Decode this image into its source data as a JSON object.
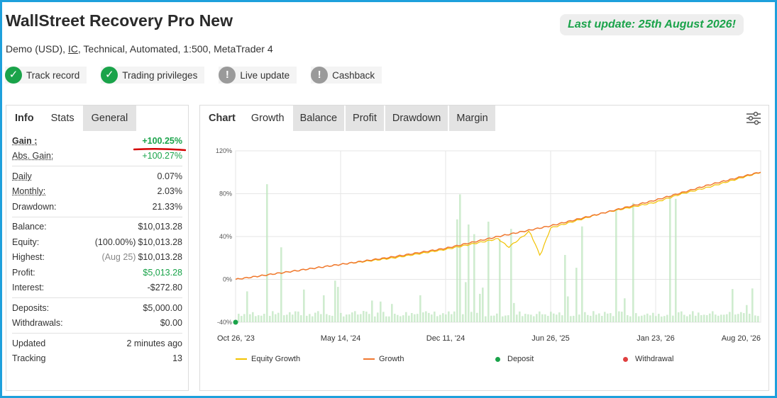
{
  "header": {
    "title": "WallStreet Recovery Pro New",
    "subtitle_pre": "Demo (USD), ",
    "subtitle_broker": "IC",
    "subtitle_post": ", Technical, Automated, 1:500, MetaTrader 4",
    "last_update": "Last update: 25th August 2026!"
  },
  "badges": [
    {
      "label": "Track record",
      "icon": "check-icon",
      "status_color": "#1aa34a"
    },
    {
      "label": "Trading privileges",
      "icon": "check-icon",
      "status_color": "#1aa34a"
    },
    {
      "label": "Live update",
      "icon": "exclamation-icon",
      "status_color": "#9a9a9a"
    },
    {
      "label": "Cashback",
      "icon": "exclamation-icon",
      "status_color": "#9a9a9a"
    }
  ],
  "left_tabs": [
    "Info",
    "Stats",
    "General"
  ],
  "stats": {
    "gain": {
      "label": "Gain :",
      "value": "+100.25%"
    },
    "abs_gain": {
      "label": "Abs. Gain:",
      "value": "+100.27%"
    },
    "daily": {
      "label": "Daily",
      "value": "0.07%"
    },
    "monthly": {
      "label": "Monthly:",
      "value": "2.03%"
    },
    "drawdown": {
      "label": "Drawdown:",
      "value": "21.33%"
    },
    "balance": {
      "label": "Balance:",
      "value": "$10,013.28"
    },
    "equity": {
      "label": "Equity:",
      "prefix": "(100.00%)",
      "value": "$10,013.28"
    },
    "highest": {
      "label": "Highest:",
      "prefix": "(Aug 25)",
      "value": "$10,013.28"
    },
    "profit": {
      "label": "Profit:",
      "value": "$5,013.28"
    },
    "interest": {
      "label": "Interest:",
      "value": "-$272.80"
    },
    "deposits": {
      "label": "Deposits:",
      "value": "$5,000.00"
    },
    "withdrawals": {
      "label": "Withdrawals:",
      "value": "$0.00"
    },
    "updated": {
      "label": "Updated",
      "value": "2 minutes ago"
    },
    "tracking": {
      "label": "Tracking",
      "value": "13"
    }
  },
  "right_tabs": [
    "Chart",
    "Growth",
    "Balance",
    "Profit",
    "Drawdown",
    "Margin"
  ],
  "chart_data": {
    "type": "line",
    "x_tick_labels": [
      "Oct 26, '23",
      "May 14, '24",
      "Dec 11, '24",
      "Jun 26, '25",
      "Jan 23, '26",
      "Aug 20, '26"
    ],
    "y_tick_labels": [
      "120%",
      "80%",
      "40%",
      "0%",
      "-40%"
    ],
    "ylim": [
      -40,
      120
    ],
    "grid": true,
    "legend_position": "bottom",
    "series": [
      {
        "name": "Equity Growth",
        "color": "#f2c200",
        "x": [
          0,
          0.1,
          0.2,
          0.3,
          0.4,
          0.5,
          0.52,
          0.56,
          0.58,
          0.6,
          0.7,
          0.8,
          0.85,
          0.9,
          1.0
        ],
        "values": [
          0,
          7,
          14,
          20,
          28,
          38,
          30,
          45,
          22,
          48,
          62,
          72,
          80,
          86,
          100
        ]
      },
      {
        "name": "Growth",
        "color": "#f07830",
        "x": [
          0,
          0.1,
          0.2,
          0.3,
          0.4,
          0.5,
          0.6,
          0.7,
          0.8,
          0.9,
          1.0
        ],
        "values": [
          0,
          7,
          14,
          21,
          29,
          40,
          50,
          62,
          74,
          88,
          100.25
        ]
      },
      {
        "name": "Deposit",
        "color": "#1aa34a"
      },
      {
        "name": "Withdrawal",
        "color": "#e04040"
      }
    ]
  }
}
